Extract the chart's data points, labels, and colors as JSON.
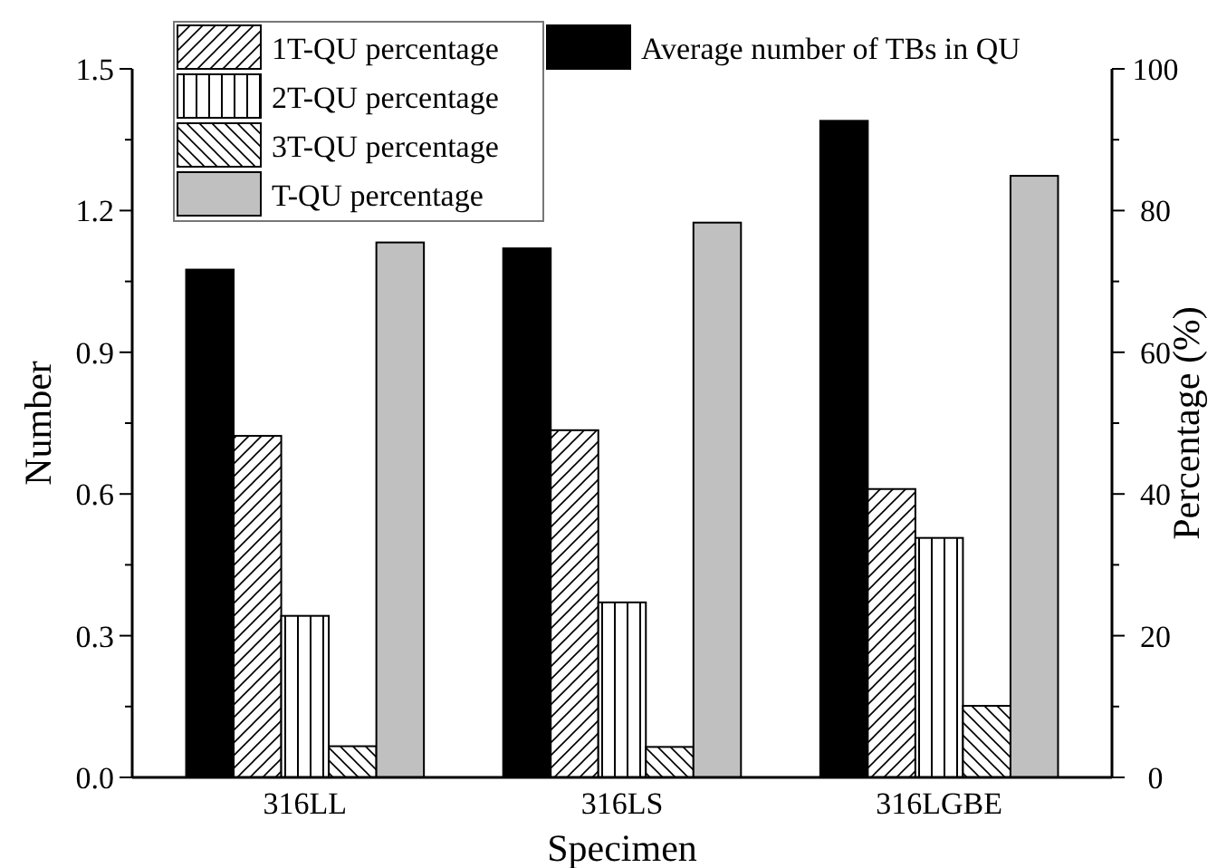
{
  "chart_data": {
    "type": "bar",
    "categories": [
      "316LL",
      "316LS",
      "316LGBE"
    ],
    "xlabel": "Specimen",
    "ylabel": "Number",
    "y2label": "Percentage (%)",
    "series": [
      {
        "name": "Average number of TBs in QU",
        "color": "#000000",
        "values": [
          1.075,
          1.12,
          1.39
        ]
      },
      {
        "name": "1T-QU percentage",
        "color": "#ffffff",
        "axis": "y2",
        "values": [
          48.2,
          49,
          40.7
        ]
      },
      {
        "name": "2T-QU percentage",
        "color": "#ffffff",
        "axis": "y2",
        "values": [
          22.8,
          24.7,
          33.8
        ]
      },
      {
        "name": "3T-QU percentage",
        "color": "#ffffff",
        "axis": "y2",
        "values": [
          4.4,
          4.3,
          10.1
        ]
      },
      {
        "name": "T-QU percentage",
        "color": "#c0c0c0",
        "axis": "y2",
        "values": [
          75.5,
          78.3,
          84.9
        ]
      }
    ],
    "ylim": [
      0,
      1.5
    ],
    "yticks": [
      "0.0",
      {
        "value": 0.15,
        "label": null
      },
      {
        "value": 0.3,
        "label": "0.3"
      },
      {
        "value": 0.45,
        "label": null
      },
      {
        "value": 0.6,
        "label": "0.6"
      },
      {
        "value": 0.75,
        "label": null
      },
      {
        "value": 0.9,
        "label": "0.9"
      },
      {
        "value": 1.05,
        "label": null
      },
      {
        "value": 1.2,
        "label": "1.2"
      },
      {
        "value": 1.35,
        "label": null
      },
      {
        "value": 1.5,
        "label": "1.5"
      }
    ],
    "y2lim": [
      0,
      100
    ],
    "y2ticks": [
      0,
      {
        "value": 10,
        "label": null
      },
      20,
      {
        "value": 30,
        "label": null
      },
      40,
      {
        "value": 50,
        "label": null
      },
      60,
      {
        "value": 70,
        "label": null
      },
      80,
      {
        "value": 90,
        "label": null
      },
      100
    ],
    "legend": "top",
    "grid": false
  }
}
